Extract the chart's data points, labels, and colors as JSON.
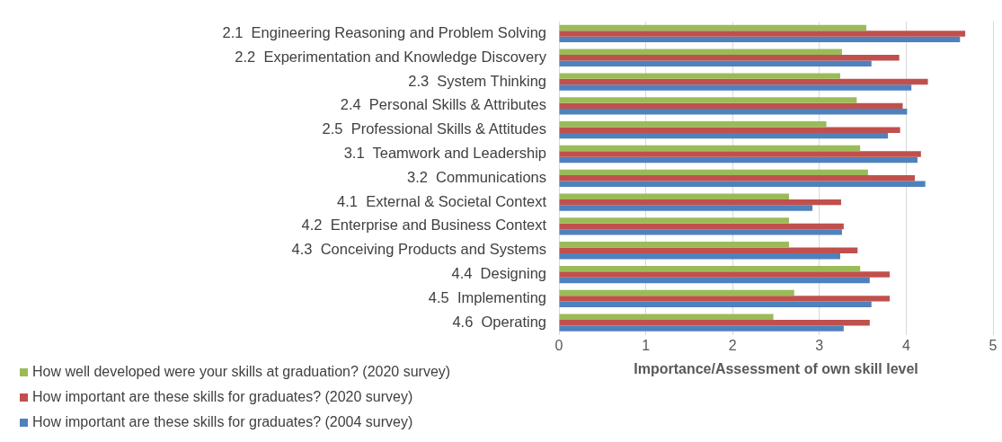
{
  "chart_data": {
    "type": "bar",
    "orientation": "horizontal",
    "xlabel": "Importance/Assessment of own skill level",
    "categories": [
      "2.1  Engineering Reasoning and Problem Solving",
      "2.2  Experimentation and Knowledge Discovery",
      "2.3  System Thinking",
      "2.4  Personal Skills & Attributes",
      "2.5  Professional Skills & Attitudes",
      "3.1  Teamwork and Leadership",
      "3.2  Communications",
      "4.1  External & Societal Context",
      "4.2  Enterprise and Business Context",
      "4.3  Conceiving Products and Systems",
      "4.4  Designing",
      "4.5  Implementing",
      "4.6  Operating"
    ],
    "series": [
      {
        "name": "How well developed were your skills at graduation? (2020 survey)",
        "color": "#9bbb59",
        "values": [
          3.54,
          3.26,
          3.24,
          3.43,
          3.08,
          3.47,
          3.56,
          2.65,
          2.65,
          2.65,
          3.47,
          2.71,
          2.47
        ]
      },
      {
        "name": "How important are these skills for graduates? (2020 survey)",
        "color": "#c0504d",
        "values": [
          4.68,
          3.92,
          4.25,
          3.96,
          3.93,
          4.17,
          4.1,
          3.25,
          3.28,
          3.44,
          3.81,
          3.81,
          3.58
        ]
      },
      {
        "name": "How important are these skills for graduates? (2004 survey)",
        "color": "#4f81bd",
        "values": [
          4.62,
          3.6,
          4.06,
          4.01,
          3.79,
          4.13,
          4.22,
          2.92,
          3.26,
          3.24,
          3.58,
          3.6,
          3.28
        ]
      }
    ],
    "xlim": [
      0,
      5
    ],
    "xticks": [
      0,
      1,
      2,
      3,
      4,
      5
    ],
    "grid": "x",
    "legend": "bottom left"
  }
}
